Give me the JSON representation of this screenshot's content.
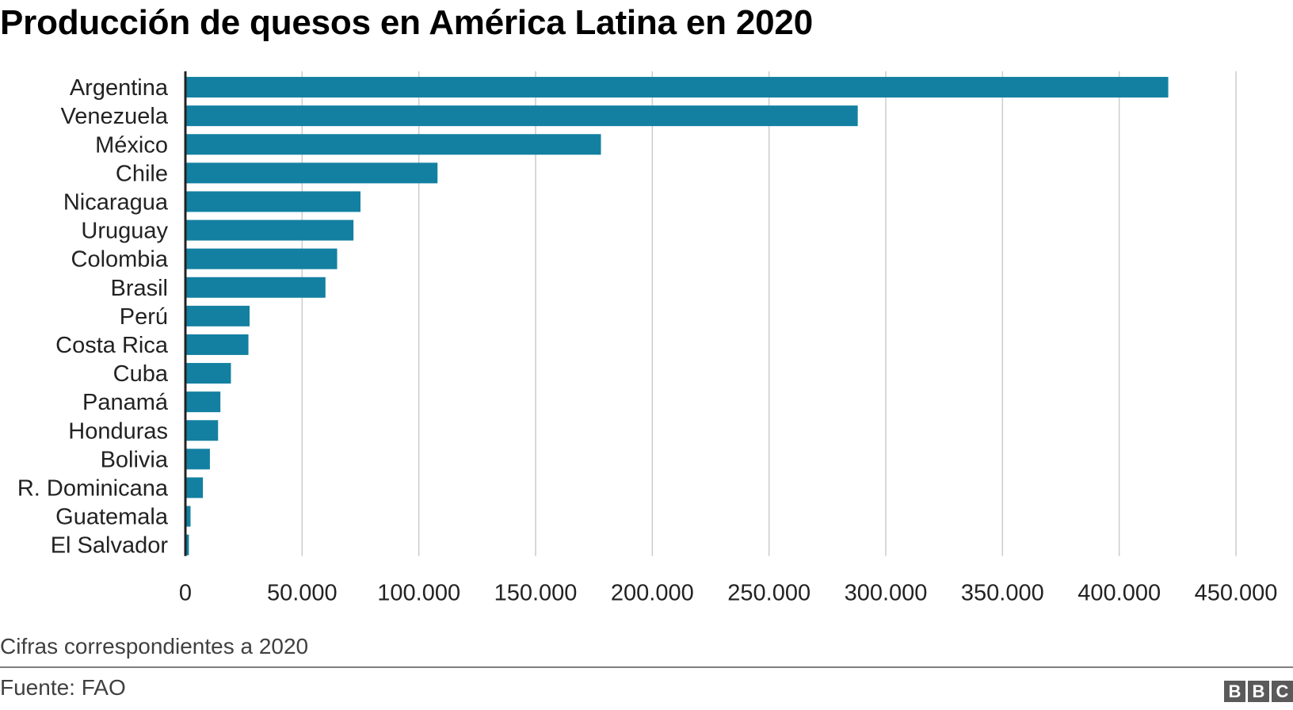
{
  "title": "Producción de quesos en América Latina en 2020",
  "note": "Cifras correspondientes a 2020",
  "source": "Fuente: FAO",
  "logo": [
    "B",
    "B",
    "C"
  ],
  "colors": {
    "bar": "#1380a1",
    "grid": "#cccccc",
    "axis": "#222222"
  },
  "chart_data": {
    "type": "bar",
    "orientation": "horizontal",
    "title": "Producción de quesos en América Latina en 2020",
    "xlim": [
      0,
      450000
    ],
    "grid": true,
    "categories": [
      "Argentina",
      "Venezuela",
      "México",
      "Chile",
      "Nicaragua",
      "Uruguay",
      "Colombia",
      "Brasil",
      "Perú",
      "Costa Rica",
      "Cuba",
      "Panamá",
      "Honduras",
      "Bolivia",
      "R. Dominicana",
      "Guatemala",
      "El Salvador"
    ],
    "values": [
      421000,
      288000,
      178000,
      108000,
      75000,
      72000,
      65000,
      60000,
      27500,
      27000,
      19500,
      15000,
      14000,
      10500,
      7500,
      2200,
      1500
    ],
    "xticks": [
      0,
      50000,
      100000,
      150000,
      200000,
      250000,
      300000,
      350000,
      400000,
      450000
    ],
    "xtick_labels": [
      "0",
      "50.000",
      "100.000",
      "150.000",
      "200.000",
      "250.000",
      "300.000",
      "350.000",
      "400.000",
      "450.000"
    ]
  }
}
